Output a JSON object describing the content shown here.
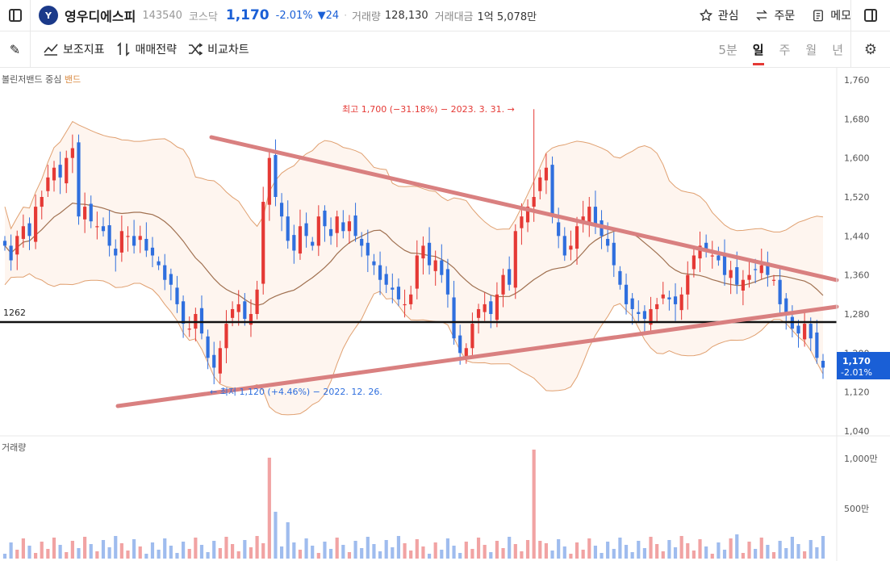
{
  "header": {
    "logo_text": "Y",
    "stock_name": "영우디에스피",
    "stock_code": "143540",
    "market": "코스닥",
    "price": "1,170",
    "change_pct": "-2.01%",
    "change_abs": "▼24",
    "volume_label": "거래량",
    "volume_value": "128,130",
    "amount_label": "거래대금",
    "amount_value": "1억 5,078만",
    "actions": {
      "watch": "관심",
      "order": "주문",
      "memo": "메모"
    }
  },
  "toolbar": {
    "indicators": "보조지표",
    "strategy": "매매전략",
    "compare": "비교차트",
    "periods": [
      "5분",
      "일",
      "주",
      "월",
      "년"
    ],
    "active_period": "일"
  },
  "legend": {
    "text": "볼린저밴드 중심",
    "band": "밴드"
  },
  "chart_annotations": {
    "high": "최고 1,700 (−31.18%) − 2023. 3. 31. →",
    "low": "← 최저 1,120 (+4.46%) − 2022. 12. 26.",
    "support_label": "1262",
    "price_tag": "1,170",
    "price_tag_pct": "-2.01%"
  },
  "volume_section": {
    "label": "거래량",
    "ticks": [
      "1,000만",
      "500만"
    ]
  },
  "colors": {
    "up": "#e53935",
    "down": "#2f6fde",
    "accent": "#1a5fd6",
    "trendline": "#d98080",
    "band": "#d9893f"
  },
  "chart_data": {
    "type": "candlestick",
    "y_axis": {
      "ticks": [
        1760,
        1680,
        1600,
        1520,
        1440,
        1360,
        1280,
        1200,
        1120,
        1040
      ],
      "range": [
        1040,
        1770
      ]
    },
    "highest": {
      "value": 1700,
      "pct": "-31.18%",
      "date": "2023. 3. 31."
    },
    "lowest": {
      "value": 1120,
      "pct": "+4.46%",
      "date": "2022. 12. 26."
    },
    "horizontal_line": 1262,
    "last_price": 1170,
    "closes": [
      1420,
      1390,
      1440,
      1460,
      1440,
      1500,
      1520,
      1560,
      1580,
      1560,
      1600,
      1620,
      1480,
      1500,
      1470,
      1460,
      1450,
      1420,
      1400,
      1450,
      1440,
      1420,
      1440,
      1410,
      1400,
      1380,
      1350,
      1340,
      1300,
      1260,
      1250,
      1280,
      1240,
      1190,
      1170,
      1210,
      1260,
      1290,
      1300,
      1270,
      1280,
      1330,
      1510,
      1600,
      1520,
      1480,
      1430,
      1410,
      1460,
      1440,
      1420,
      1480,
      1460,
      1440,
      1480,
      1450,
      1470,
      1440,
      1420,
      1400,
      1380,
      1350,
      1340,
      1330,
      1310,
      1300,
      1320,
      1400,
      1420,
      1380,
      1390,
      1360,
      1320,
      1230,
      1200,
      1210,
      1260,
      1290,
      1300,
      1280,
      1320,
      1360,
      1340,
      1450,
      1480,
      1500,
      1520,
      1560,
      1580,
      1480,
      1440,
      1400,
      1420,
      1460,
      1480,
      1500,
      1460,
      1440,
      1420,
      1380,
      1340,
      1300,
      1290,
      1280,
      1270,
      1290,
      1300,
      1320,
      1310,
      1300,
      1320,
      1360,
      1400,
      1420,
      1410,
      1400,
      1390,
      1360,
      1370,
      1340,
      1350,
      1360,
      1370,
      1380,
      1360,
      1350,
      1300,
      1280,
      1250,
      1240,
      1260,
      1230,
      1190,
      1170
    ],
    "volume_notes": "spikes near 2023-01 (~1,000만) and 2023-03-31 (~1,000만)"
  }
}
